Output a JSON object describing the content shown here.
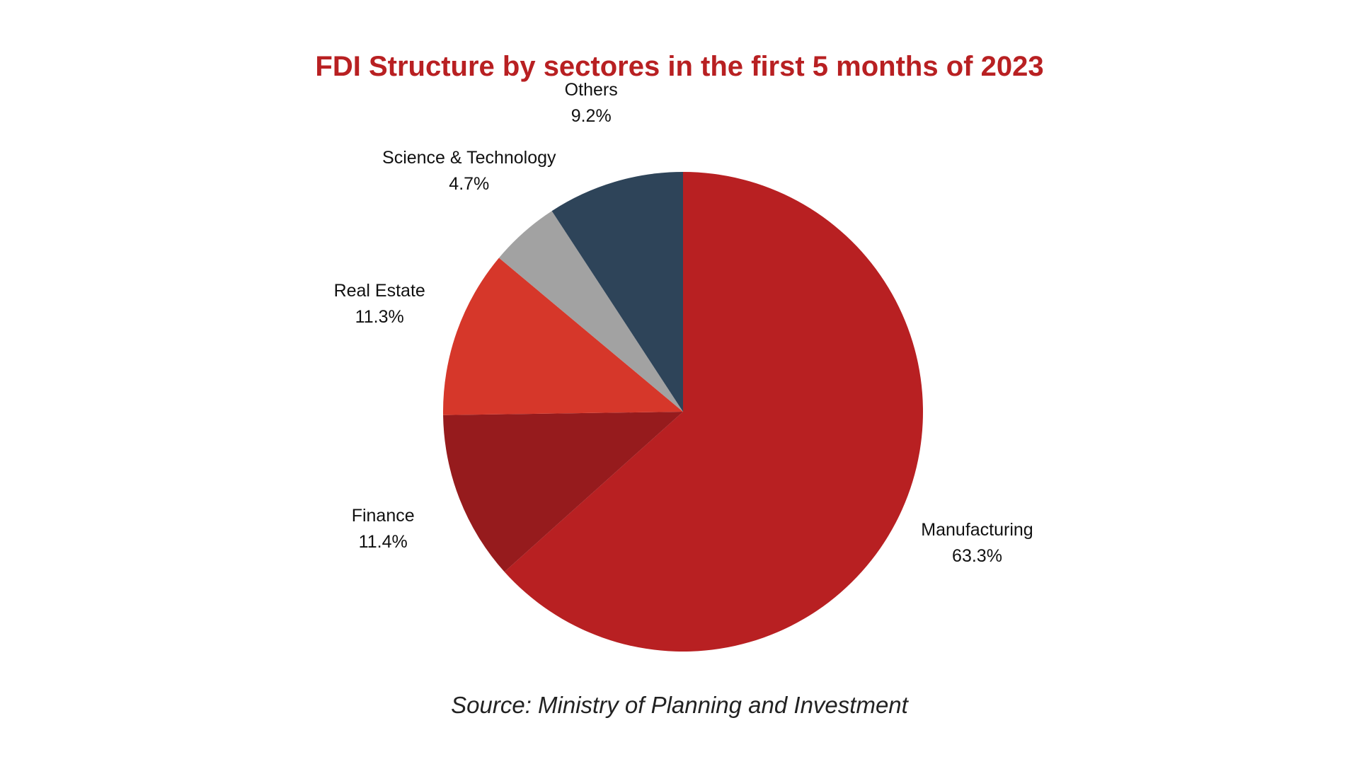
{
  "chart_data": {
    "type": "pie",
    "title": "FDI Structure by sectores in the first 5 months of 2023",
    "categories": [
      "Manufacturing",
      "Finance",
      "Real Estate",
      "Science & Technology",
      "Others"
    ],
    "values": [
      63.3,
      11.4,
      11.3,
      4.7,
      9.2
    ],
    "value_labels": [
      "63.3%",
      "11.4%",
      "11.3%",
      "4.7%",
      "9.2%"
    ],
    "colors": [
      "#b82022",
      "#961b1d",
      "#d6372a",
      "#a2a2a2",
      "#2e4459"
    ],
    "start": "12 o'clock",
    "direction": "clockwise",
    "legend": "none",
    "source": "Source: Ministry of Planning and Investment"
  },
  "theme": {
    "title_color": "#b82022"
  }
}
